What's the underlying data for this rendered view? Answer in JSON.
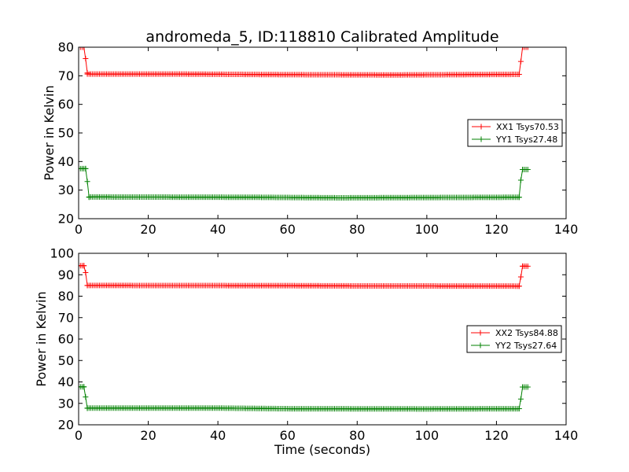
{
  "figure": {
    "title": "andromeda_5, ID:118810 Calibrated Amplitude"
  },
  "chart_data": [
    {
      "type": "line",
      "title": "andromeda_5, ID:118810 Calibrated Amplitude",
      "xlabel": "",
      "ylabel": "Power in Kelvin",
      "xlim": [
        0,
        140
      ],
      "ylim": [
        20,
        80
      ],
      "xticks": [
        "0",
        "20",
        "40",
        "60",
        "80",
        "100",
        "120",
        "140"
      ],
      "yticks": [
        "20",
        "30",
        "40",
        "50",
        "60",
        "70",
        "80"
      ],
      "grid": false,
      "legend_position": "right",
      "marker": "+",
      "series": [
        {
          "name": "XX1 Tsys70.53",
          "color": "#ff0000",
          "segments": [
            {
              "x": [
                0,
                0.5,
                1,
                1.5
              ],
              "y": [
                80,
                80,
                80,
                80
              ]
            },
            {
              "x": [
                1.5,
                2,
                2.5
              ],
              "y": [
                80,
                76,
                71
              ]
            },
            {
              "x_start": 2.5,
              "x_end": 126.5,
              "x_step": 0.5,
              "y_knots": [
                [
                  2.5,
                  70.6
                ],
                [
                  30,
                  70.6
                ],
                [
                  60,
                  70.4
                ],
                [
                  90,
                  70.3
                ],
                [
                  126.5,
                  70.5
                ]
              ]
            },
            {
              "x": [
                126.5,
                127,
                127.5
              ],
              "y": [
                70.5,
                75,
                80
              ]
            },
            {
              "x": [
                127.5,
                128,
                128.5,
                129
              ],
              "y": [
                80,
                80,
                80,
                80
              ]
            }
          ]
        },
        {
          "name": "YY1 Tsys27.48",
          "color": "#008000",
          "segments": [
            {
              "x": [
                0,
                0.5,
                1,
                1.5,
                2
              ],
              "y": [
                37.5,
                37.5,
                37.5,
                37.5,
                37.5
              ]
            },
            {
              "x": [
                2,
                2.5,
                3
              ],
              "y": [
                37.5,
                33,
                27.5
              ]
            },
            {
              "x_start": 3,
              "x_end": 126.5,
              "x_step": 0.5,
              "y_knots": [
                [
                  3,
                  27.6
                ],
                [
                  50,
                  27.5
                ],
                [
                  75,
                  27.3
                ],
                [
                  100,
                  27.4
                ],
                [
                  126.5,
                  27.5
                ]
              ]
            },
            {
              "x": [
                126.5,
                127,
                127.5
              ],
              "y": [
                27.5,
                33.5,
                37.2
              ]
            },
            {
              "x": [
                127.5,
                128,
                128.5,
                129
              ],
              "y": [
                37.2,
                37.2,
                37.2,
                37.2
              ]
            }
          ]
        }
      ]
    },
    {
      "type": "line",
      "title": "",
      "xlabel": "Time (seconds)",
      "ylabel": "Power in Kelvin",
      "xlim": [
        0,
        140
      ],
      "ylim": [
        20,
        100
      ],
      "xticks": [
        "0",
        "20",
        "40",
        "60",
        "80",
        "100",
        "120",
        "140"
      ],
      "yticks": [
        "20",
        "30",
        "40",
        "50",
        "60",
        "70",
        "80",
        "90",
        "100"
      ],
      "grid": false,
      "legend_position": "right",
      "marker": "+",
      "series": [
        {
          "name": "XX2 Tsys84.88",
          "color": "#ff0000",
          "segments": [
            {
              "x": [
                0,
                0.5,
                1,
                1.5
              ],
              "y": [
                94.2,
                94.2,
                94.2,
                94.2
              ]
            },
            {
              "x": [
                1.5,
                2,
                2.5
              ],
              "y": [
                94.2,
                91,
                85
              ]
            },
            {
              "x_start": 2.5,
              "x_end": 126.5,
              "x_step": 0.5,
              "y_knots": [
                [
                  2.5,
                  85
                ],
                [
                  60,
                  84.9
                ],
                [
                  75,
                  84.8
                ],
                [
                  126.5,
                  84.7
                ]
              ]
            },
            {
              "x": [
                126.5,
                127,
                127.5
              ],
              "y": [
                84.7,
                89,
                94
              ]
            },
            {
              "x": [
                127.5,
                128,
                128.5,
                129
              ],
              "y": [
                94,
                94,
                94,
                94
              ]
            }
          ]
        },
        {
          "name": "YY2 Tsys27.64",
          "color": "#008000",
          "segments": [
            {
              "x": [
                0,
                0.5,
                1,
                1.5
              ],
              "y": [
                37.7,
                37.7,
                37.7,
                37.7
              ]
            },
            {
              "x": [
                1.5,
                2,
                2.5
              ],
              "y": [
                37.7,
                33,
                27.7
              ]
            },
            {
              "x_start": 2.5,
              "x_end": 126.5,
              "x_step": 0.5,
              "y_knots": [
                [
                  2.5,
                  27.8
                ],
                [
                  40,
                  27.8
                ],
                [
                  60,
                  27.5
                ],
                [
                  100,
                  27.4
                ],
                [
                  126.5,
                  27.5
                ]
              ]
            },
            {
              "x": [
                126.5,
                127,
                127.5
              ],
              "y": [
                27.5,
                32,
                37.6
              ]
            },
            {
              "x": [
                127.5,
                128,
                128.5,
                129
              ],
              "y": [
                37.6,
                37.6,
                37.6,
                37.6
              ]
            }
          ]
        }
      ]
    }
  ]
}
